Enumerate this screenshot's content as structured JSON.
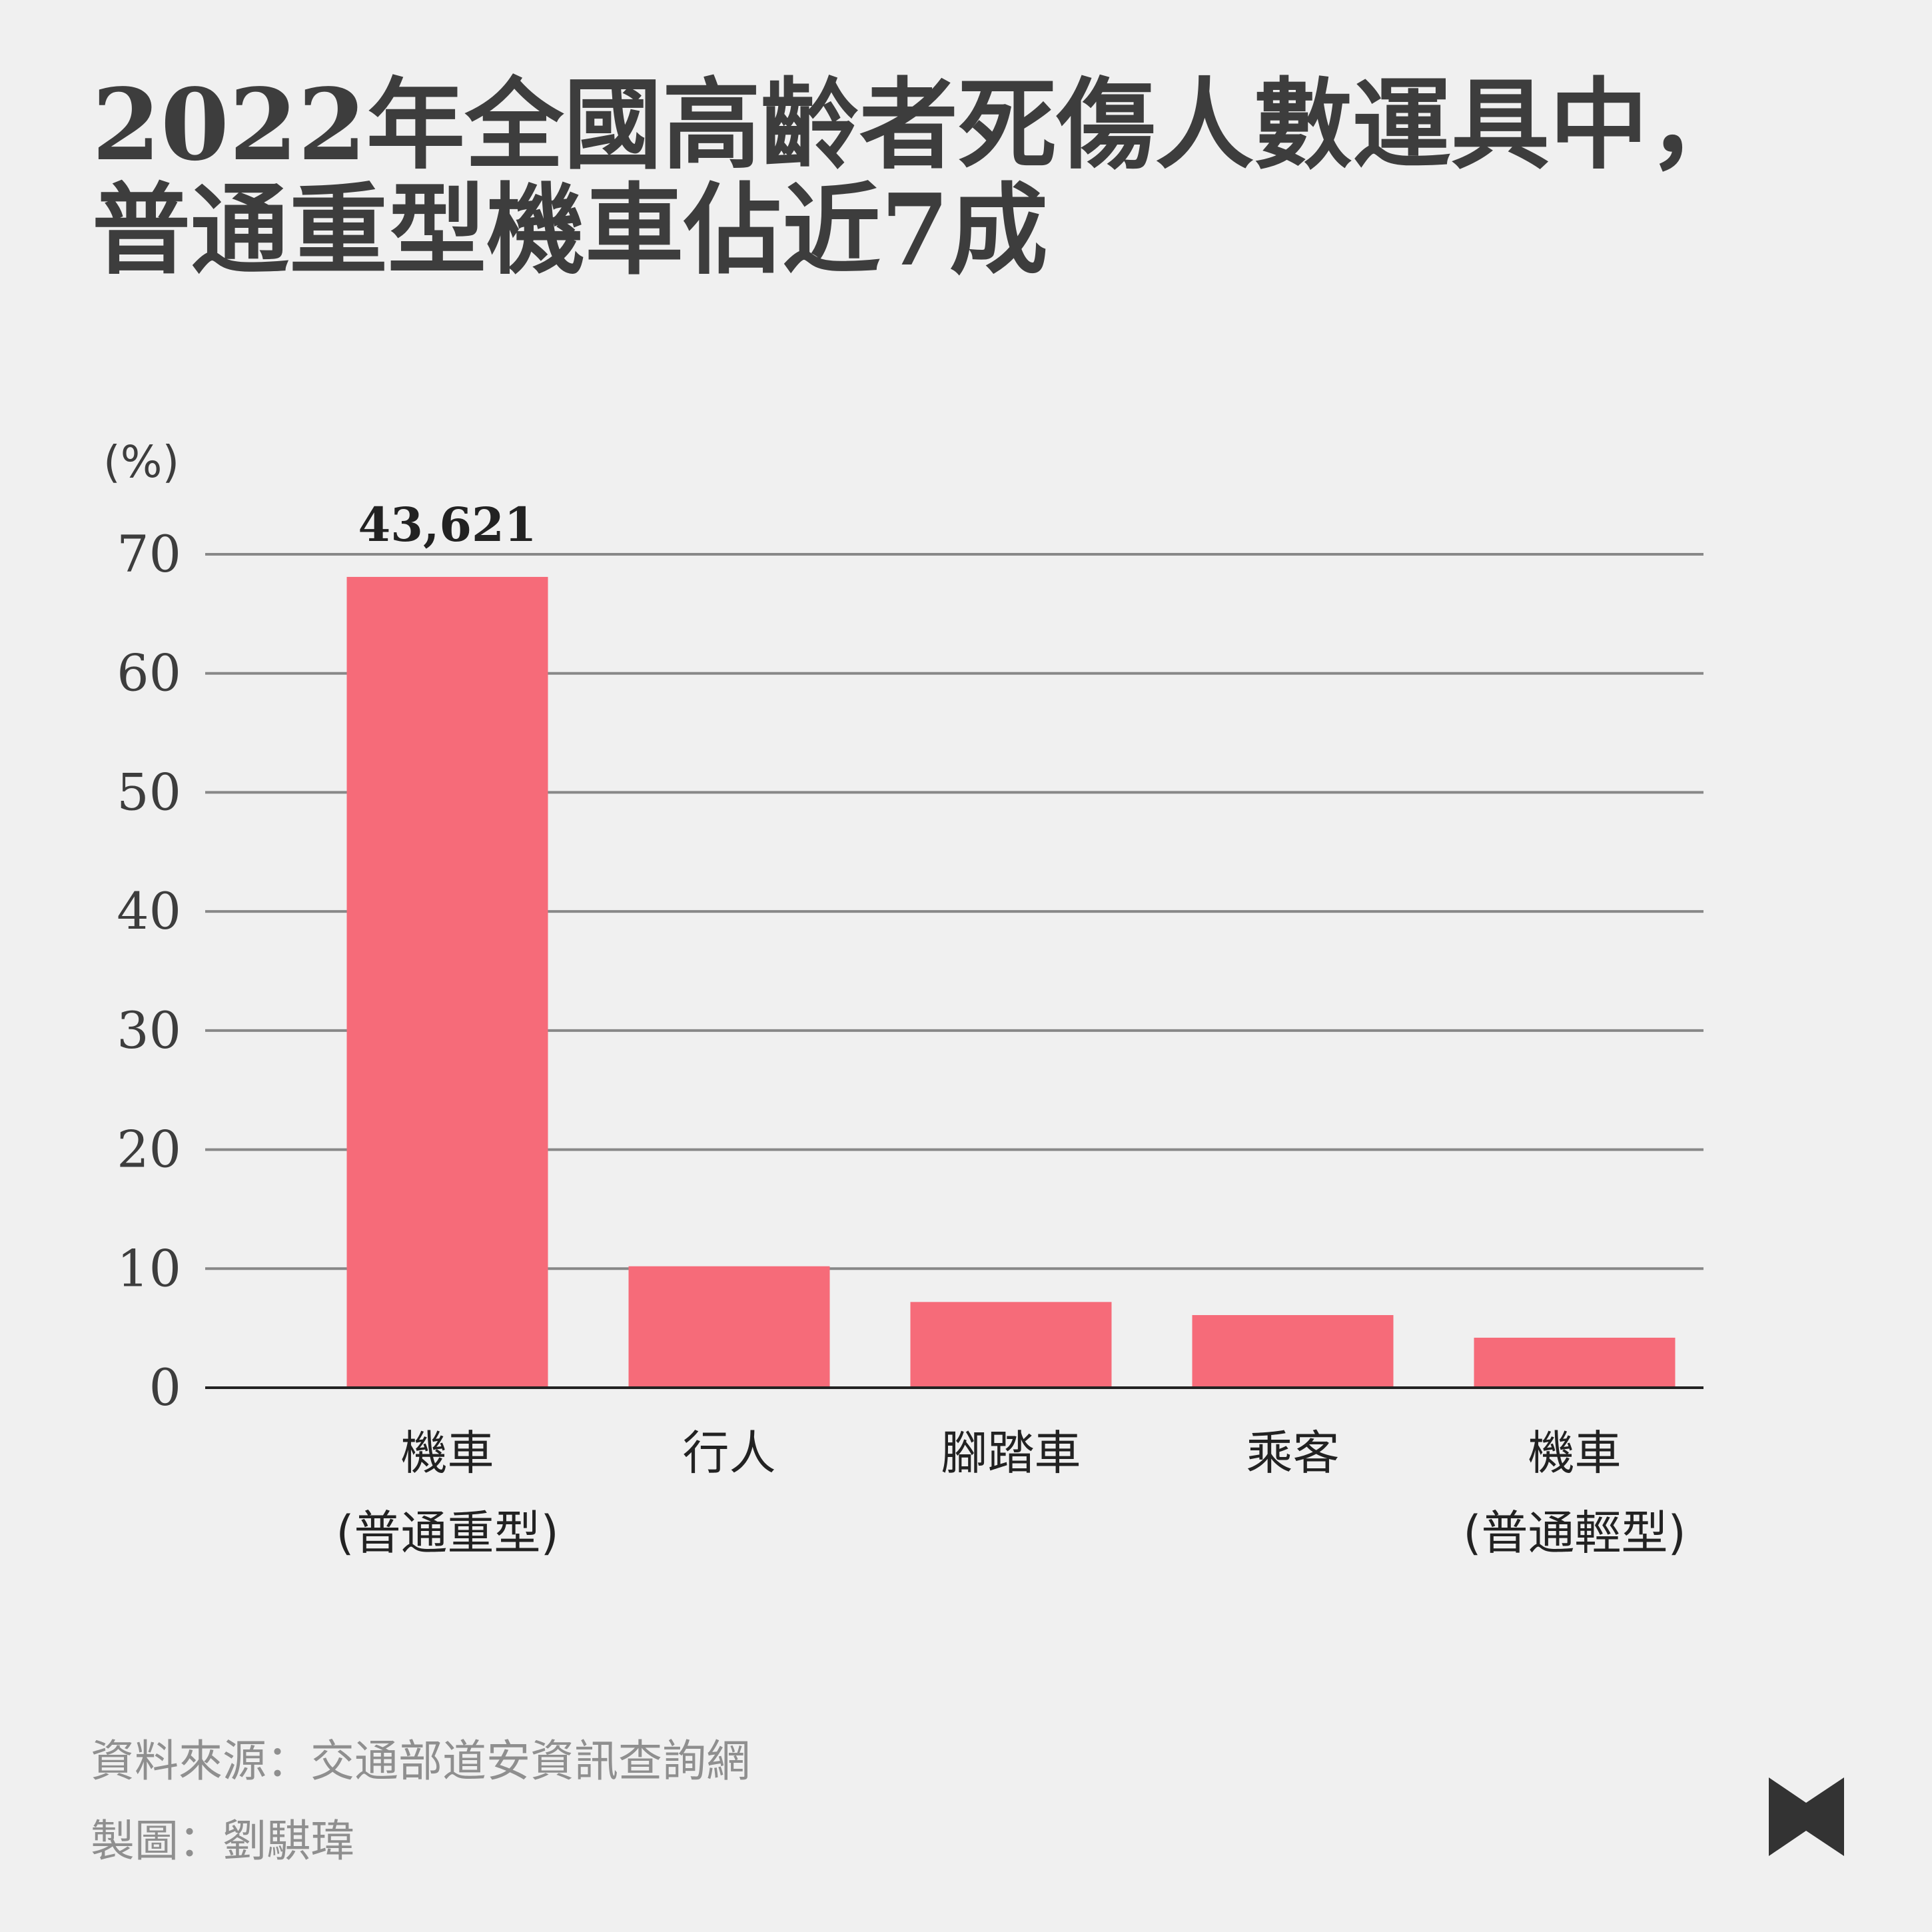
{
  "title": {
    "line1": "2022年全國高齡者死傷人數運具中，",
    "line2": "普通重型機車佔近7成"
  },
  "chart_data": {
    "type": "bar",
    "ylabel": "(%)",
    "ylim": [
      0,
      70
    ],
    "yticks": [
      0,
      10,
      20,
      30,
      40,
      50,
      60,
      70
    ],
    "grid": true,
    "categories": [
      [
        "機車",
        "(普通重型)"
      ],
      [
        "行人"
      ],
      [
        "腳踏車"
      ],
      [
        "乘客"
      ],
      [
        "機車",
        "(普通輕型)"
      ]
    ],
    "values": [
      68.1,
      10.2,
      7.2,
      6.1,
      4.2
    ],
    "data_labels": [
      "43,621",
      "",
      "",
      "",
      ""
    ],
    "bar_color": "#f66b79"
  },
  "footer": {
    "source": "資料來源：交通部道安資訊查詢網",
    "maker": "製圖：劉騏瑋"
  },
  "colors": {
    "background": "#f0f0f0",
    "text": "#3d3d3d",
    "grid": "#888888",
    "footer_text": "#8f8f8f",
    "logo": "#333333"
  },
  "logo": {
    "icon": "bookmark-bow-logo"
  }
}
